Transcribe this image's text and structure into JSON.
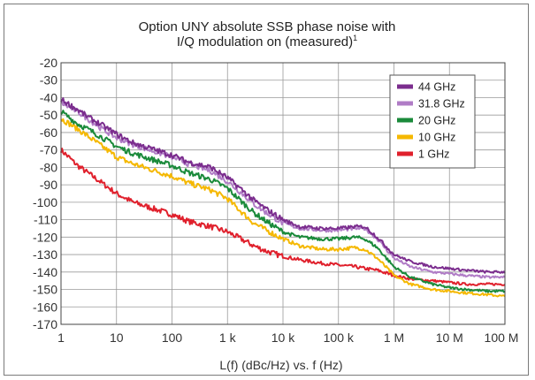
{
  "chart_data": {
    "type": "line",
    "title_lines": [
      "Option UNY absolute SSB phase noise with",
      "I/Q modulation on (measured)"
    ],
    "title_superscript": "1",
    "xlabel": "L(f) (dBc/Hz) vs. f (Hz)",
    "ylabel": "",
    "x_scale": "log",
    "xlim": [
      1,
      100000000
    ],
    "ylim": [
      -170,
      -20
    ],
    "grid": true,
    "legend_position": "top-right",
    "x_ticks": [
      {
        "value": 1,
        "label": "1"
      },
      {
        "value": 10,
        "label": "10"
      },
      {
        "value": 100,
        "label": "100"
      },
      {
        "value": 1000,
        "label": "1 k"
      },
      {
        "value": 10000,
        "label": "10 k"
      },
      {
        "value": 100000,
        "label": "100 k"
      },
      {
        "value": 1000000,
        "label": "1 M"
      },
      {
        "value": 10000000,
        "label": "10 M"
      },
      {
        "value": 100000000,
        "label": "100 M"
      }
    ],
    "y_ticks": [
      -20,
      -30,
      -40,
      -50,
      -60,
      -70,
      -80,
      -90,
      -100,
      -110,
      -120,
      -130,
      -140,
      -150,
      -160,
      -170
    ],
    "series": [
      {
        "name": "44 GHz",
        "color": "#7b2d8e",
        "x": [
          1,
          2,
          3,
          5,
          10,
          20,
          50,
          100,
          200,
          500,
          1000,
          2000,
          3000,
          5000,
          10000,
          20000,
          50000,
          100000,
          200000,
          300000,
          500000,
          1000000,
          2000000,
          5000000,
          10000000,
          20000000,
          50000000,
          100000000
        ],
        "y": [
          -41,
          -47,
          -51,
          -55,
          -61,
          -66,
          -70,
          -73,
          -77,
          -80,
          -86,
          -94,
          -99,
          -104,
          -110,
          -114,
          -115,
          -115,
          -114,
          -114,
          -120,
          -130,
          -134,
          -137,
          -138,
          -139,
          -140,
          -140
        ]
      },
      {
        "name": "31.8 GHz",
        "color": "#b07cc6",
        "x": [
          1,
          2,
          3,
          5,
          10,
          20,
          50,
          100,
          200,
          500,
          1000,
          2000,
          3000,
          5000,
          10000,
          20000,
          50000,
          100000,
          200000,
          300000,
          500000,
          1000000,
          2000000,
          5000000,
          10000000,
          20000000,
          50000000,
          100000000
        ],
        "y": [
          -43,
          -48,
          -52,
          -57,
          -63,
          -67,
          -71,
          -74,
          -78,
          -82,
          -88,
          -96,
          -101,
          -106,
          -112,
          -115,
          -116,
          -116,
          -115,
          -115,
          -121,
          -132,
          -137,
          -140,
          -141,
          -142,
          -143,
          -143
        ]
      },
      {
        "name": "20 GHz",
        "color": "#1a8a3a",
        "x": [
          1,
          2,
          3,
          5,
          10,
          20,
          50,
          100,
          200,
          500,
          1000,
          2000,
          3000,
          5000,
          10000,
          20000,
          50000,
          100000,
          200000,
          300000,
          500000,
          1000000,
          2000000,
          5000000,
          10000000,
          20000000,
          50000000,
          100000000
        ],
        "y": [
          -48,
          -55,
          -58,
          -62,
          -68,
          -72,
          -76,
          -79,
          -83,
          -87,
          -92,
          -101,
          -106,
          -111,
          -117,
          -120,
          -121,
          -121,
          -120,
          -121,
          -126,
          -137,
          -143,
          -147,
          -149,
          -150,
          -151,
          -151
        ]
      },
      {
        "name": "10 GHz",
        "color": "#f5b800",
        "x": [
          1,
          2,
          3,
          5,
          10,
          20,
          50,
          100,
          200,
          500,
          1000,
          2000,
          3000,
          5000,
          10000,
          20000,
          50000,
          100000,
          200000,
          300000,
          500000,
          1000000,
          2000000,
          5000000,
          10000000,
          20000000,
          50000000,
          100000000
        ],
        "y": [
          -52,
          -58,
          -62,
          -67,
          -74,
          -78,
          -82,
          -85,
          -89,
          -93,
          -98,
          -107,
          -112,
          -116,
          -121,
          -125,
          -127,
          -127,
          -126,
          -127,
          -132,
          -142,
          -147,
          -150,
          -151,
          -152,
          -153,
          -154
        ]
      },
      {
        "name": "1 GHz",
        "color": "#e0202c",
        "x": [
          1,
          2,
          3,
          5,
          10,
          20,
          50,
          100,
          200,
          500,
          1000,
          2000,
          3000,
          5000,
          10000,
          20000,
          50000,
          100000,
          200000,
          300000,
          500000,
          1000000,
          2000000,
          5000000,
          10000000,
          20000000,
          50000000,
          100000000
        ],
        "y": [
          -70,
          -79,
          -83,
          -88,
          -95,
          -100,
          -104,
          -107,
          -111,
          -114,
          -117,
          -122,
          -125,
          -128,
          -131,
          -133,
          -135,
          -136,
          -137,
          -138,
          -139,
          -142,
          -144,
          -145,
          -146,
          -147,
          -147,
          -147
        ]
      }
    ]
  }
}
